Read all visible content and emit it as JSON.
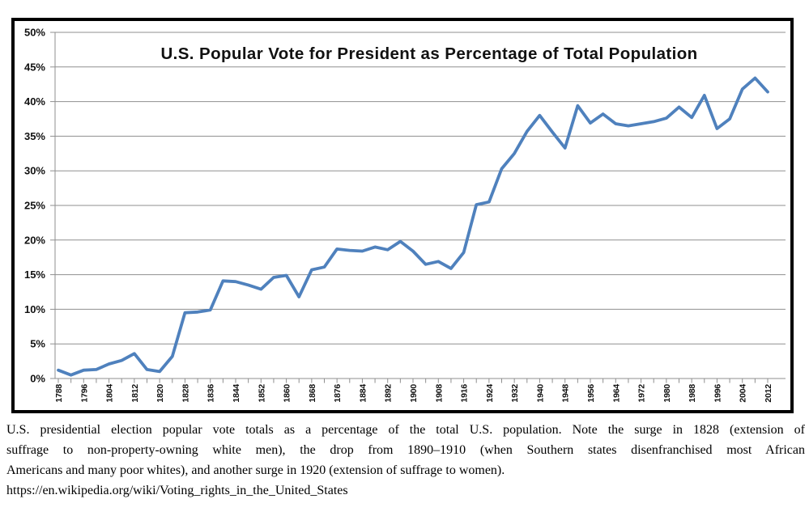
{
  "chart_data": {
    "type": "line",
    "title": "U.S. Popular Vote for President as Percentage of Total Population",
    "xlabel": "",
    "ylabel": "",
    "ylim": [
      0,
      50
    ],
    "ytick_step": 5,
    "ytick_suffix": "%",
    "xtick_step_years": 4,
    "xtick_label_every_years": 8,
    "grid": true,
    "legend_position": "none",
    "line_color": "#4F81BD",
    "grid_color": "#8f8f8f",
    "frame_color": "#000000",
    "x": [
      1788,
      1792,
      1796,
      1800,
      1804,
      1808,
      1812,
      1816,
      1820,
      1824,
      1828,
      1832,
      1836,
      1840,
      1844,
      1848,
      1852,
      1856,
      1860,
      1864,
      1868,
      1872,
      1876,
      1880,
      1884,
      1888,
      1892,
      1896,
      1900,
      1904,
      1908,
      1912,
      1916,
      1920,
      1924,
      1928,
      1932,
      1936,
      1940,
      1944,
      1948,
      1952,
      1956,
      1960,
      1964,
      1968,
      1972,
      1976,
      1980,
      1984,
      1988,
      1992,
      1996,
      2000,
      2004,
      2008,
      2012
    ],
    "values": [
      1.2,
      0.5,
      1.2,
      1.3,
      2.1,
      2.6,
      3.6,
      1.3,
      1.0,
      3.2,
      9.5,
      9.6,
      9.9,
      14.1,
      14.0,
      13.5,
      12.9,
      14.6,
      14.9,
      11.8,
      15.7,
      16.1,
      18.7,
      18.5,
      18.4,
      19.0,
      18.6,
      19.8,
      18.4,
      16.5,
      16.9,
      15.9,
      18.2,
      25.1,
      25.5,
      30.3,
      32.5,
      35.7,
      38.0,
      35.6,
      33.3,
      39.4,
      36.9,
      38.2,
      36.8,
      36.5,
      36.8,
      37.1,
      37.6,
      39.2,
      37.7,
      40.9,
      36.1,
      37.5,
      41.8,
      43.4,
      41.4
    ],
    "x_tick_labels": [
      "1788",
      "1796",
      "1804",
      "1812",
      "1820",
      "1828",
      "1836",
      "1844",
      "1852",
      "1860",
      "1868",
      "1876",
      "1884",
      "1892",
      "1900",
      "1908",
      "1916",
      "1924",
      "1932",
      "1940",
      "1948",
      "1956",
      "1964",
      "1972",
      "1980",
      "1988",
      "1996",
      "2004",
      "2012"
    ],
    "y_tick_labels": [
      "0%",
      "5%",
      "10%",
      "15%",
      "20%",
      "25%",
      "30%",
      "35%",
      "40%",
      "45%",
      "50%"
    ]
  },
  "caption": {
    "lines": [
      "U.S. presidential election popular vote totals as a percentage of the total U.S. population. Note the surge in 1828 (extension of",
      "suffrage to non-property-owning white men), the drop from 1890–1910 (when Southern states disenfranchised most African",
      "Americans and many poor whites), and another surge in 1920 (extension of suffrage to women)."
    ],
    "url": "https://en.wikipedia.org/wiki/Voting_rights_in_the_United_States"
  }
}
